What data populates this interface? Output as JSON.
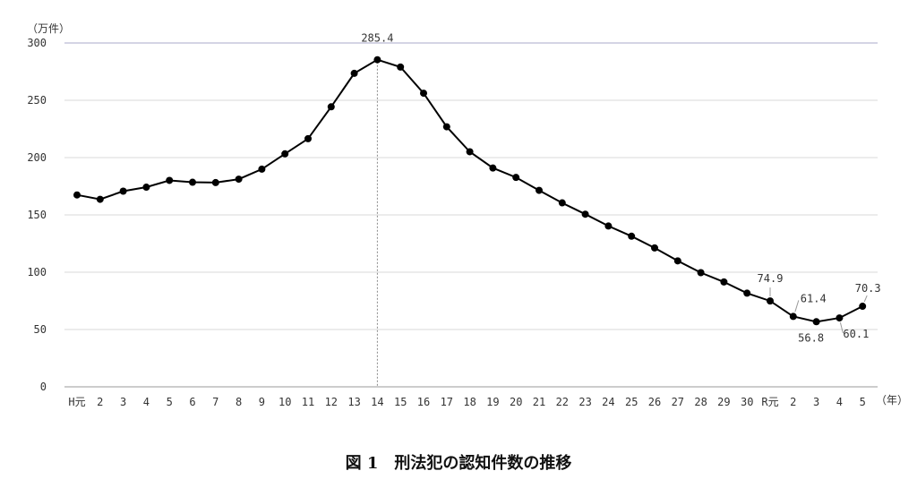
{
  "figure": {
    "caption": "図 1　刑法犯の認知件数の推移"
  },
  "chart_data": {
    "type": "line",
    "title": "",
    "ylabel_unit": "（万件）",
    "xlabel_unit": "（年）",
    "ylim": [
      0,
      300
    ],
    "yticks": [
      0,
      50,
      100,
      150,
      200,
      250,
      300
    ],
    "categories": [
      "H元",
      "2",
      "3",
      "4",
      "5",
      "6",
      "7",
      "8",
      "9",
      "10",
      "11",
      "12",
      "13",
      "14",
      "15",
      "16",
      "17",
      "18",
      "19",
      "20",
      "21",
      "22",
      "23",
      "24",
      "25",
      "26",
      "27",
      "28",
      "29",
      "30",
      "R元",
      "2",
      "3",
      "4",
      "5"
    ],
    "values": [
      167.4,
      163.6,
      170.7,
      174.2,
      180.1,
      178.5,
      178.2,
      181.2,
      189.9,
      203.3,
      216.5,
      244.3,
      273.5,
      285.4,
      279.0,
      256.2,
      226.9,
      205.1,
      190.9,
      182.7,
      171.4,
      160.5,
      150.6,
      140.3,
      131.4,
      121.2,
      109.9,
      99.6,
      91.5,
      81.7,
      74.9,
      61.4,
      56.8,
      60.1,
      70.3
    ],
    "line_color": "#000000",
    "highlight_color": "#e0302a",
    "grid": "horizontal",
    "reference_line_category": "14",
    "annotations": [
      {
        "index": 13,
        "text": "285.4",
        "color": "#333333"
      },
      {
        "index": 30,
        "text": "74.9",
        "color": "#333333"
      },
      {
        "index": 31,
        "text": "61.4",
        "color": "#333333"
      },
      {
        "index": 32,
        "text": "56.8",
        "color": "#333333"
      },
      {
        "index": 33,
        "text": "60.1",
        "color": "#000000"
      },
      {
        "index": 34,
        "text": "70.3",
        "color": "#e0302a"
      }
    ]
  }
}
